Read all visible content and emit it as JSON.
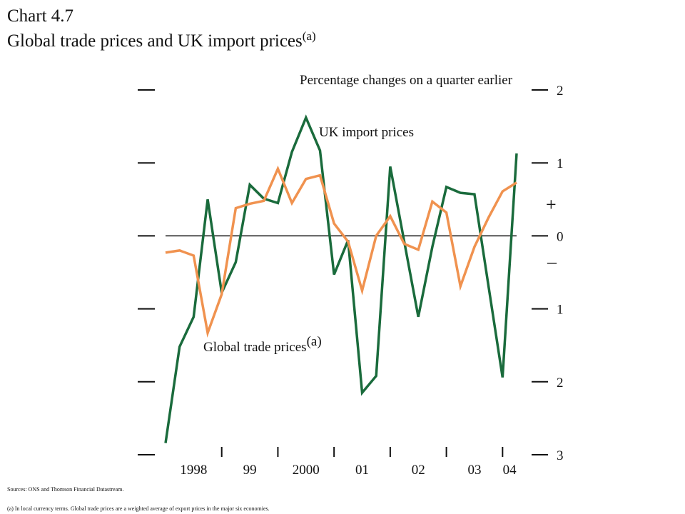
{
  "chart_data": {
    "type": "line",
    "title": "Chart 4.7",
    "subtitle": "Global trade prices and UK import prices",
    "subtitle_note": "(a)",
    "y_axis_label": "Percentage changes on a quarter earlier",
    "sign_plus": "+",
    "sign_minus": "–",
    "x": [
      1998,
      1998.25,
      1998.5,
      1998.75,
      1999,
      1999.25,
      1999.5,
      1999.75,
      2000,
      2000.25,
      2000.5,
      2000.75,
      2001,
      2001.25,
      2001.5,
      2001.75,
      2002,
      2002.25,
      2002.5,
      2002.75,
      2003,
      2003.25,
      2003.5,
      2003.75,
      2004,
      2004.25
    ],
    "xlim": [
      1998,
      2004.25
    ],
    "xticks": [
      1999,
      2000,
      2001,
      2002,
      2003,
      2004
    ],
    "year_labels": [
      {
        "value": 1998.5,
        "label": "1998"
      },
      {
        "value": 1999.5,
        "label": "99"
      },
      {
        "value": 2000.5,
        "label": "2000"
      },
      {
        "value": 2001.5,
        "label": "01"
      },
      {
        "value": 2002.5,
        "label": "02"
      },
      {
        "value": 2003.5,
        "label": "03"
      },
      {
        "value": 2004.125,
        "label": "04"
      }
    ],
    "ylim": [
      -3,
      2
    ],
    "yticks": [
      2,
      1,
      0,
      {
        "value": -1,
        "label": "1"
      },
      {
        "value": -2,
        "label": "2"
      },
      {
        "value": -3,
        "label": "3"
      }
    ],
    "series": [
      {
        "name": "UK import prices",
        "color": "#1a6b3c",
        "values": [
          -2.84,
          -1.52,
          -1.11,
          0.5,
          -0.78,
          -0.36,
          0.7,
          0.51,
          0.45,
          1.15,
          1.62,
          1.17,
          -0.53,
          -0.06,
          -2.15,
          -1.92,
          0.95,
          -0.08,
          -1.11,
          -0.15,
          0.67,
          0.59,
          0.57,
          -0.69,
          -1.94,
          1.13
        ]
      },
      {
        "name": "Global trade prices",
        "name_note": "(a)",
        "color": "#f0924f",
        "values": [
          -0.23,
          -0.2,
          -0.27,
          -1.33,
          -0.8,
          0.38,
          0.44,
          0.48,
          0.92,
          0.45,
          0.78,
          0.83,
          0.17,
          -0.08,
          -0.75,
          0,
          0.27,
          -0.11,
          -0.19,
          0.47,
          0.32,
          -0.69,
          -0.15,
          0.25,
          0.61,
          0.73
        ]
      }
    ],
    "sources": "Sources:  ONS and Thomson Financial Datastream.",
    "footnote": "(a)  In local currency terms.  Global trade prices are a weighted average of export prices in the major six economies."
  }
}
